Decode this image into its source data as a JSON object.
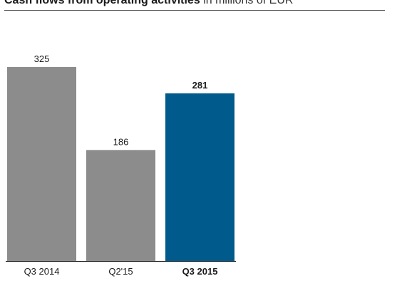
{
  "header": {
    "title_bold": "Cash flows from operating activities",
    "title_unit": "in millions of EUR"
  },
  "chart_data": {
    "type": "bar",
    "title": "Cash flows from operating activities in millions of EUR",
    "xlabel": "",
    "ylabel": "",
    "categories": [
      "Q3 2014",
      "Q2'15",
      "Q3 2015"
    ],
    "values": [
      325,
      186,
      281
    ],
    "data_labels": [
      "325",
      "186",
      "281"
    ],
    "highlighted": [
      false,
      false,
      true
    ],
    "colors": [
      "#8c8c8c",
      "#8c8c8c",
      "#005a8c"
    ],
    "ylim": [
      0,
      325
    ],
    "grid": false,
    "legend": "none"
  },
  "colors": {
    "bar_default": "#8c8c8c",
    "bar_highlight": "#005a8c",
    "axis": "#222222"
  }
}
